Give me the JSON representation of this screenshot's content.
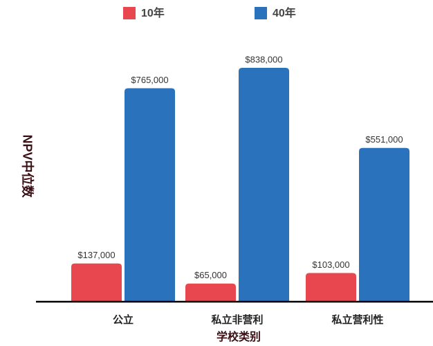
{
  "chart_data": {
    "type": "bar",
    "x_label": "学校类别",
    "y_label": "NPV中位数",
    "categories": [
      "公立",
      "私立非营利",
      "私立营利性"
    ],
    "series": [
      {
        "name": "10年",
        "color": "#e8474f",
        "values": [
          137000,
          65000,
          103000
        ],
        "value_labels": [
          "$137,000",
          "$65,000",
          "$103,000"
        ]
      },
      {
        "name": "40年",
        "color": "#2b72bd",
        "values": [
          765000,
          838000,
          551000
        ],
        "value_labels": [
          "$765,000",
          "$838,000",
          "$551,000"
        ]
      }
    ],
    "legend": "top"
  }
}
